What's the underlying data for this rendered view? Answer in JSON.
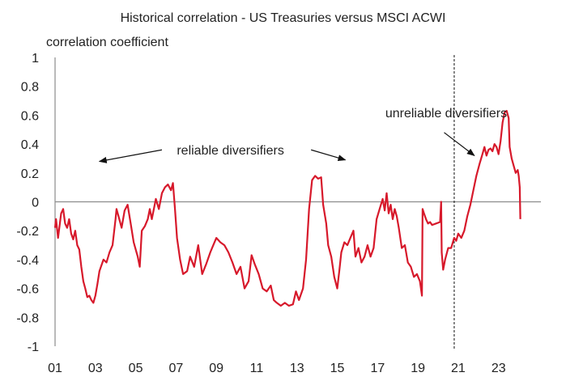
{
  "chart_data": {
    "type": "line",
    "title": "Historical correlation - US Treasuries versus MSCI ACWI",
    "xlabel": "",
    "ylabel": "correlation coefficient",
    "ylim": [
      -1,
      1
    ],
    "yticks": [
      "1",
      "0.8",
      "0.6",
      "0.4",
      "0.2",
      "0",
      "-0.2",
      "-0.4",
      "-0.6",
      "-0.8",
      "-1"
    ],
    "xlim": [
      2001,
      2025.1
    ],
    "xticks": [
      {
        "x": 2001,
        "label": "01"
      },
      {
        "x": 2003,
        "label": "03"
      },
      {
        "x": 2005,
        "label": "05"
      },
      {
        "x": 2007,
        "label": "07"
      },
      {
        "x": 2009,
        "label": "09"
      },
      {
        "x": 2011,
        "label": "11"
      },
      {
        "x": 2013,
        "label": "13"
      },
      {
        "x": 2015,
        "label": "15"
      },
      {
        "x": 2017,
        "label": "17"
      },
      {
        "x": 2019,
        "label": "19"
      },
      {
        "x": 2021,
        "label": "21"
      },
      {
        "x": 2023,
        "label": "23"
      }
    ],
    "line_color": "#d7192b",
    "zero_line": true,
    "grid": false,
    "divider_x": 2020.8,
    "annotations": [
      {
        "text": "reliable diversifiers",
        "x": 2009.7,
        "y": 0.36
      },
      {
        "text": "unreliable diversifiers",
        "x": 2020.4,
        "y": 0.62
      }
    ],
    "arrows": [
      {
        "from": [
          2006.3,
          0.36
        ],
        "to": [
          2003.2,
          0.28
        ]
      },
      {
        "from": [
          2013.7,
          0.36
        ],
        "to": [
          2015.4,
          0.29
        ]
      },
      {
        "from": [
          2020.3,
          0.48
        ],
        "to": [
          2021.8,
          0.32
        ]
      }
    ],
    "series": [
      {
        "values": [
          [
            2001.0,
            -0.18
          ],
          [
            2001.05,
            -0.12
          ],
          [
            2001.15,
            -0.25
          ],
          [
            2001.3,
            -0.08
          ],
          [
            2001.4,
            -0.05
          ],
          [
            2001.5,
            -0.15
          ],
          [
            2001.6,
            -0.18
          ],
          [
            2001.7,
            -0.12
          ],
          [
            2001.8,
            -0.22
          ],
          [
            2001.9,
            -0.26
          ],
          [
            2002.0,
            -0.2
          ],
          [
            2002.1,
            -0.3
          ],
          [
            2002.2,
            -0.33
          ],
          [
            2002.3,
            -0.45
          ],
          [
            2002.4,
            -0.55
          ],
          [
            2002.5,
            -0.6
          ],
          [
            2002.6,
            -0.66
          ],
          [
            2002.7,
            -0.65
          ],
          [
            2002.8,
            -0.68
          ],
          [
            2002.9,
            -0.7
          ],
          [
            2003.0,
            -0.65
          ],
          [
            2003.1,
            -0.57
          ],
          [
            2003.2,
            -0.48
          ],
          [
            2003.3,
            -0.44
          ],
          [
            2003.4,
            -0.4
          ],
          [
            2003.55,
            -0.42
          ],
          [
            2003.7,
            -0.35
          ],
          [
            2003.85,
            -0.3
          ],
          [
            2004.0,
            -0.12
          ],
          [
            2004.05,
            -0.05
          ],
          [
            2004.15,
            -0.1
          ],
          [
            2004.3,
            -0.18
          ],
          [
            2004.45,
            -0.06
          ],
          [
            2004.6,
            -0.02
          ],
          [
            2004.75,
            -0.15
          ],
          [
            2004.9,
            -0.28
          ],
          [
            2005.0,
            -0.33
          ],
          [
            2005.1,
            -0.38
          ],
          [
            2005.2,
            -0.45
          ],
          [
            2005.3,
            -0.2
          ],
          [
            2005.45,
            -0.17
          ],
          [
            2005.6,
            -0.12
          ],
          [
            2005.7,
            -0.05
          ],
          [
            2005.8,
            -0.12
          ],
          [
            2006.0,
            0.02
          ],
          [
            2006.15,
            -0.05
          ],
          [
            2006.3,
            0.06
          ],
          [
            2006.45,
            0.1
          ],
          [
            2006.6,
            0.12
          ],
          [
            2006.75,
            0.08
          ],
          [
            2006.85,
            0.13
          ],
          [
            2006.95,
            -0.05
          ],
          [
            2007.05,
            -0.25
          ],
          [
            2007.2,
            -0.4
          ],
          [
            2007.35,
            -0.5
          ],
          [
            2007.55,
            -0.48
          ],
          [
            2007.7,
            -0.38
          ],
          [
            2007.9,
            -0.45
          ],
          [
            2008.1,
            -0.3
          ],
          [
            2008.3,
            -0.5
          ],
          [
            2008.5,
            -0.43
          ],
          [
            2008.7,
            -0.35
          ],
          [
            2008.85,
            -0.3
          ],
          [
            2009.0,
            -0.25
          ],
          [
            2009.2,
            -0.28
          ],
          [
            2009.4,
            -0.3
          ],
          [
            2009.6,
            -0.35
          ],
          [
            2009.8,
            -0.42
          ],
          [
            2010.0,
            -0.5
          ],
          [
            2010.2,
            -0.45
          ],
          [
            2010.4,
            -0.6
          ],
          [
            2010.6,
            -0.55
          ],
          [
            2010.75,
            -0.37
          ],
          [
            2010.9,
            -0.43
          ],
          [
            2011.1,
            -0.5
          ],
          [
            2011.3,
            -0.6
          ],
          [
            2011.5,
            -0.62
          ],
          [
            2011.7,
            -0.58
          ],
          [
            2011.85,
            -0.68
          ],
          [
            2012.0,
            -0.7
          ],
          [
            2012.2,
            -0.72
          ],
          [
            2012.4,
            -0.7
          ],
          [
            2012.6,
            -0.72
          ],
          [
            2012.8,
            -0.71
          ],
          [
            2012.95,
            -0.62
          ],
          [
            2013.1,
            -0.68
          ],
          [
            2013.3,
            -0.6
          ],
          [
            2013.45,
            -0.4
          ],
          [
            2013.6,
            -0.05
          ],
          [
            2013.75,
            0.15
          ],
          [
            2013.9,
            0.18
          ],
          [
            2014.05,
            0.16
          ],
          [
            2014.2,
            0.17
          ],
          [
            2014.3,
            -0.02
          ],
          [
            2014.45,
            -0.15
          ],
          [
            2014.55,
            -0.3
          ],
          [
            2014.7,
            -0.38
          ],
          [
            2014.85,
            -0.52
          ],
          [
            2015.0,
            -0.6
          ],
          [
            2015.1,
            -0.48
          ],
          [
            2015.2,
            -0.35
          ],
          [
            2015.35,
            -0.28
          ],
          [
            2015.5,
            -0.3
          ],
          [
            2015.65,
            -0.25
          ],
          [
            2015.8,
            -0.2
          ],
          [
            2015.9,
            -0.38
          ],
          [
            2016.05,
            -0.32
          ],
          [
            2016.2,
            -0.42
          ],
          [
            2016.35,
            -0.38
          ],
          [
            2016.5,
            -0.3
          ],
          [
            2016.65,
            -0.38
          ],
          [
            2016.8,
            -0.32
          ],
          [
            2016.95,
            -0.12
          ],
          [
            2017.1,
            -0.05
          ],
          [
            2017.25,
            0.02
          ],
          [
            2017.35,
            -0.06
          ],
          [
            2017.45,
            0.06
          ],
          [
            2017.55,
            -0.08
          ],
          [
            2017.65,
            -0.02
          ],
          [
            2017.75,
            -0.12
          ],
          [
            2017.85,
            -0.05
          ],
          [
            2017.95,
            -0.1
          ],
          [
            2018.05,
            -0.18
          ],
          [
            2018.2,
            -0.32
          ],
          [
            2018.35,
            -0.3
          ],
          [
            2018.5,
            -0.42
          ],
          [
            2018.65,
            -0.45
          ],
          [
            2018.8,
            -0.52
          ],
          [
            2018.95,
            -0.5
          ],
          [
            2019.1,
            -0.55
          ],
          [
            2019.2,
            -0.65
          ],
          [
            2019.23,
            -0.05
          ],
          [
            2019.3,
            -0.08
          ],
          [
            2019.4,
            -0.12
          ],
          [
            2019.5,
            -0.15
          ],
          [
            2019.6,
            -0.14
          ],
          [
            2019.7,
            -0.16
          ],
          [
            2019.9,
            -0.15
          ],
          [
            2020.1,
            -0.14
          ],
          [
            2020.15,
            0.0
          ],
          [
            2020.18,
            -0.35
          ],
          [
            2020.25,
            -0.47
          ],
          [
            2020.35,
            -0.4
          ],
          [
            2020.5,
            -0.32
          ],
          [
            2020.65,
            -0.32
          ],
          [
            2020.8,
            -0.25
          ],
          [
            2020.9,
            -0.27
          ],
          [
            2021.0,
            -0.22
          ],
          [
            2021.15,
            -0.25
          ],
          [
            2021.3,
            -0.2
          ],
          [
            2021.45,
            -0.1
          ],
          [
            2021.6,
            -0.02
          ],
          [
            2021.75,
            0.08
          ],
          [
            2021.9,
            0.18
          ],
          [
            2022.05,
            0.26
          ],
          [
            2022.2,
            0.33
          ],
          [
            2022.3,
            0.38
          ],
          [
            2022.4,
            0.32
          ],
          [
            2022.5,
            0.36
          ],
          [
            2022.6,
            0.37
          ],
          [
            2022.7,
            0.35
          ],
          [
            2022.8,
            0.4
          ],
          [
            2022.9,
            0.38
          ],
          [
            2023.0,
            0.33
          ],
          [
            2023.1,
            0.42
          ],
          [
            2023.2,
            0.55
          ],
          [
            2023.3,
            0.62
          ],
          [
            2023.4,
            0.63
          ],
          [
            2023.5,
            0.58
          ],
          [
            2023.55,
            0.38
          ],
          [
            2023.65,
            0.3
          ],
          [
            2023.75,
            0.25
          ],
          [
            2023.85,
            0.2
          ],
          [
            2023.95,
            0.22
          ],
          [
            2024.0,
            0.18
          ],
          [
            2024.05,
            0.1
          ],
          [
            2024.08,
            -0.12
          ]
        ]
      }
    ]
  }
}
